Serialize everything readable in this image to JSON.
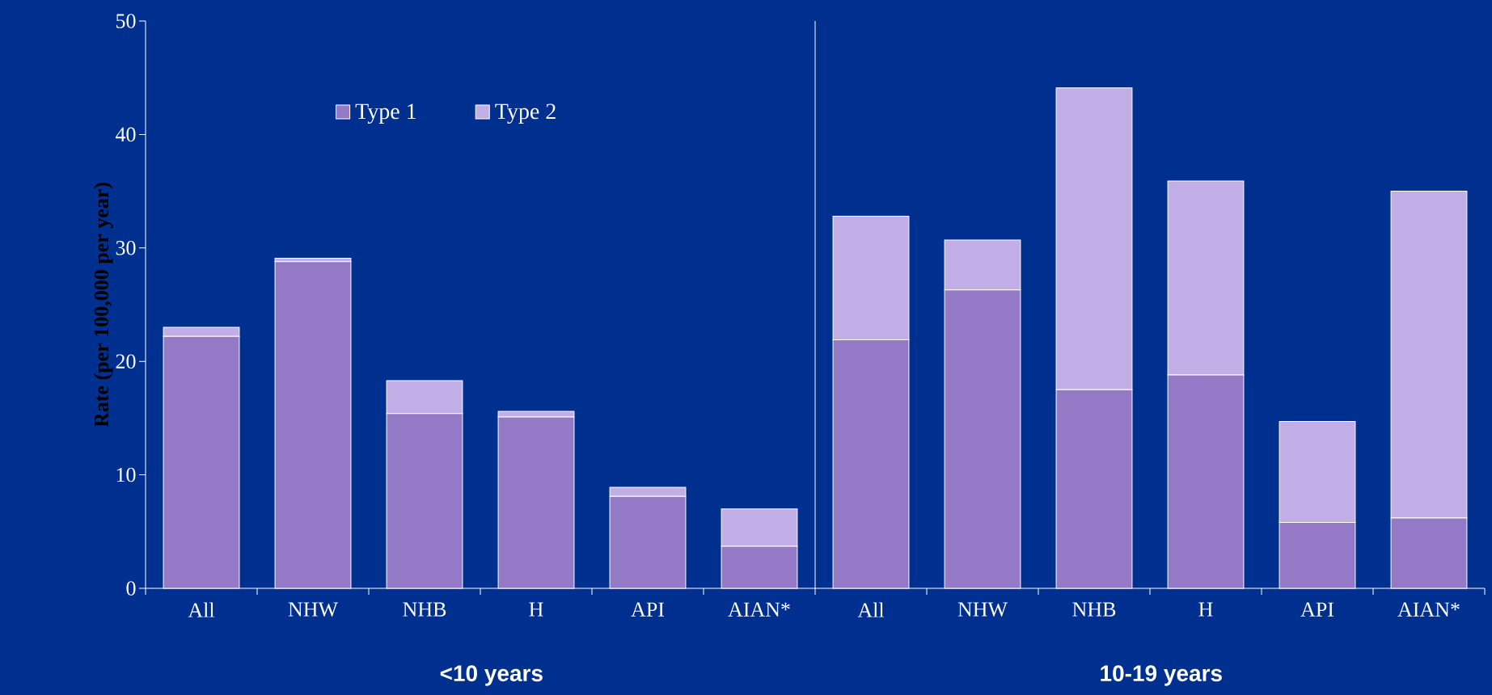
{
  "chart_data": {
    "type": "bar",
    "stacked": true,
    "categories": [
      "All",
      "NHW",
      "NHB",
      "H",
      "API",
      "AIAN*",
      "All",
      "NHW",
      "NHB",
      "H",
      "API",
      "AIAN*"
    ],
    "series": [
      {
        "name": "Type 1",
        "color": "#9479c6",
        "values": [
          22.2,
          28.8,
          15.4,
          15.1,
          8.1,
          3.7,
          21.9,
          26.3,
          17.5,
          18.8,
          5.8,
          6.2
        ]
      },
      {
        "name": "Type 2",
        "color": "#c2aee6",
        "values": [
          0.8,
          0.3,
          2.9,
          0.5,
          0.8,
          3.3,
          10.9,
          4.4,
          26.6,
          17.1,
          8.9,
          28.8
        ]
      }
    ],
    "ylabel": "Rate (per 100,000 per year)",
    "ylim": [
      0,
      50
    ],
    "yticks": [
      0,
      10,
      20,
      30,
      40,
      50
    ],
    "legend": "top left",
    "annotations": [
      "<10 years",
      "10-19 years"
    ]
  }
}
